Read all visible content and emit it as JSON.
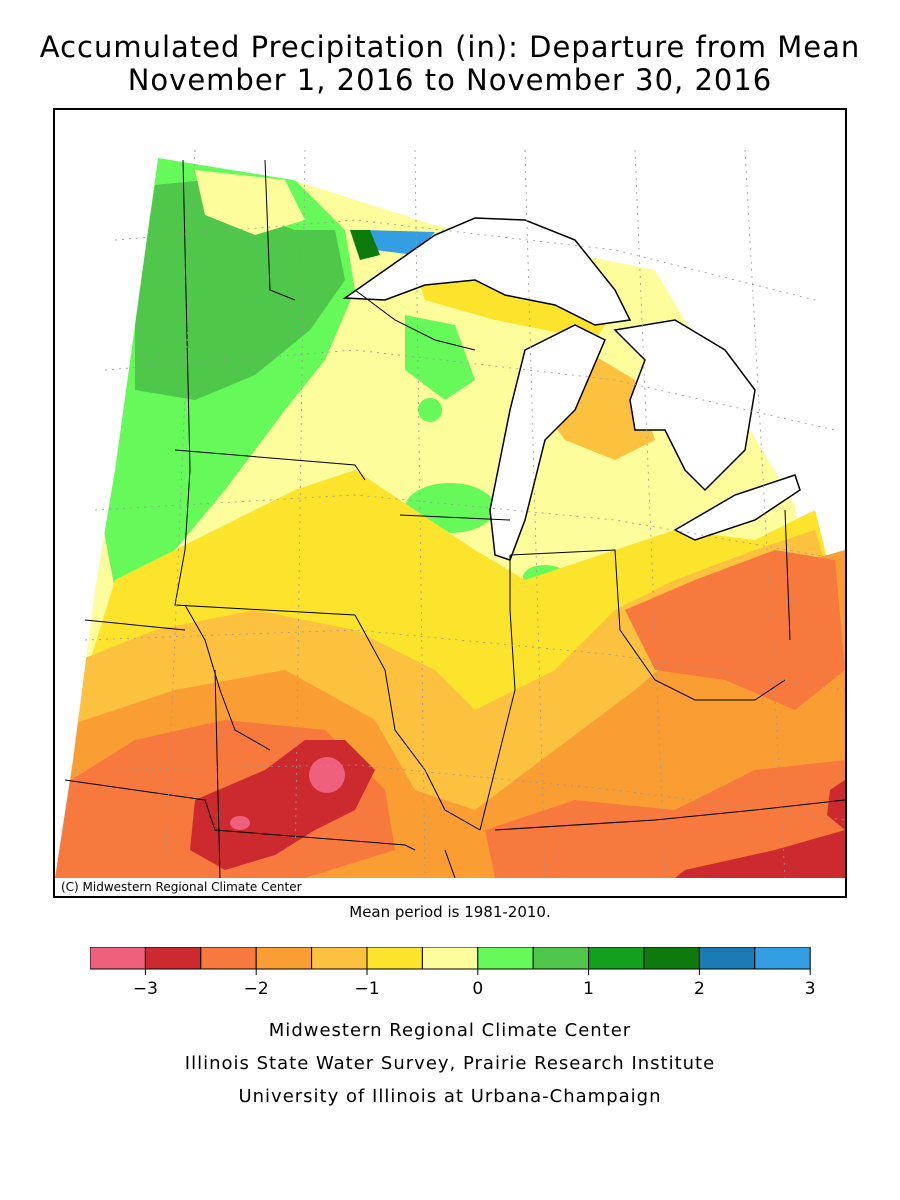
{
  "title": {
    "line1": "Accumulated Precipitation (in): Departure from Mean",
    "line2": "November 1, 2016 to November 30, 2016"
  },
  "map": {
    "credit": "(C) Midwestern Regional Climate Center",
    "region": "Upper Midwest / Great Lakes states"
  },
  "mean_note": "Mean period is 1981-2010.",
  "legend": {
    "bins": [
      {
        "color": "#ef5f7e"
      },
      {
        "color": "#cc2a2e"
      },
      {
        "color": "#f7793d"
      },
      {
        "color": "#fa9e34"
      },
      {
        "color": "#fcc13f"
      },
      {
        "color": "#fce42c"
      },
      {
        "color": "#fdfd9c"
      },
      {
        "color": "#65fa59"
      },
      {
        "color": "#4ec74a"
      },
      {
        "color": "#14a01f"
      },
      {
        "color": "#0c7b0c"
      },
      {
        "color": "#1b7ab4"
      },
      {
        "color": "#349ee2"
      }
    ],
    "tick_labels": [
      "−3",
      "−2",
      "−1",
      "0",
      "1",
      "2",
      "3"
    ]
  },
  "footer": {
    "line1": "Midwestern Regional Climate Center",
    "line2": "Illinois State Water Survey, Prairie Research Institute",
    "line3": "University of Illinois at Urbana-Champaign"
  }
}
